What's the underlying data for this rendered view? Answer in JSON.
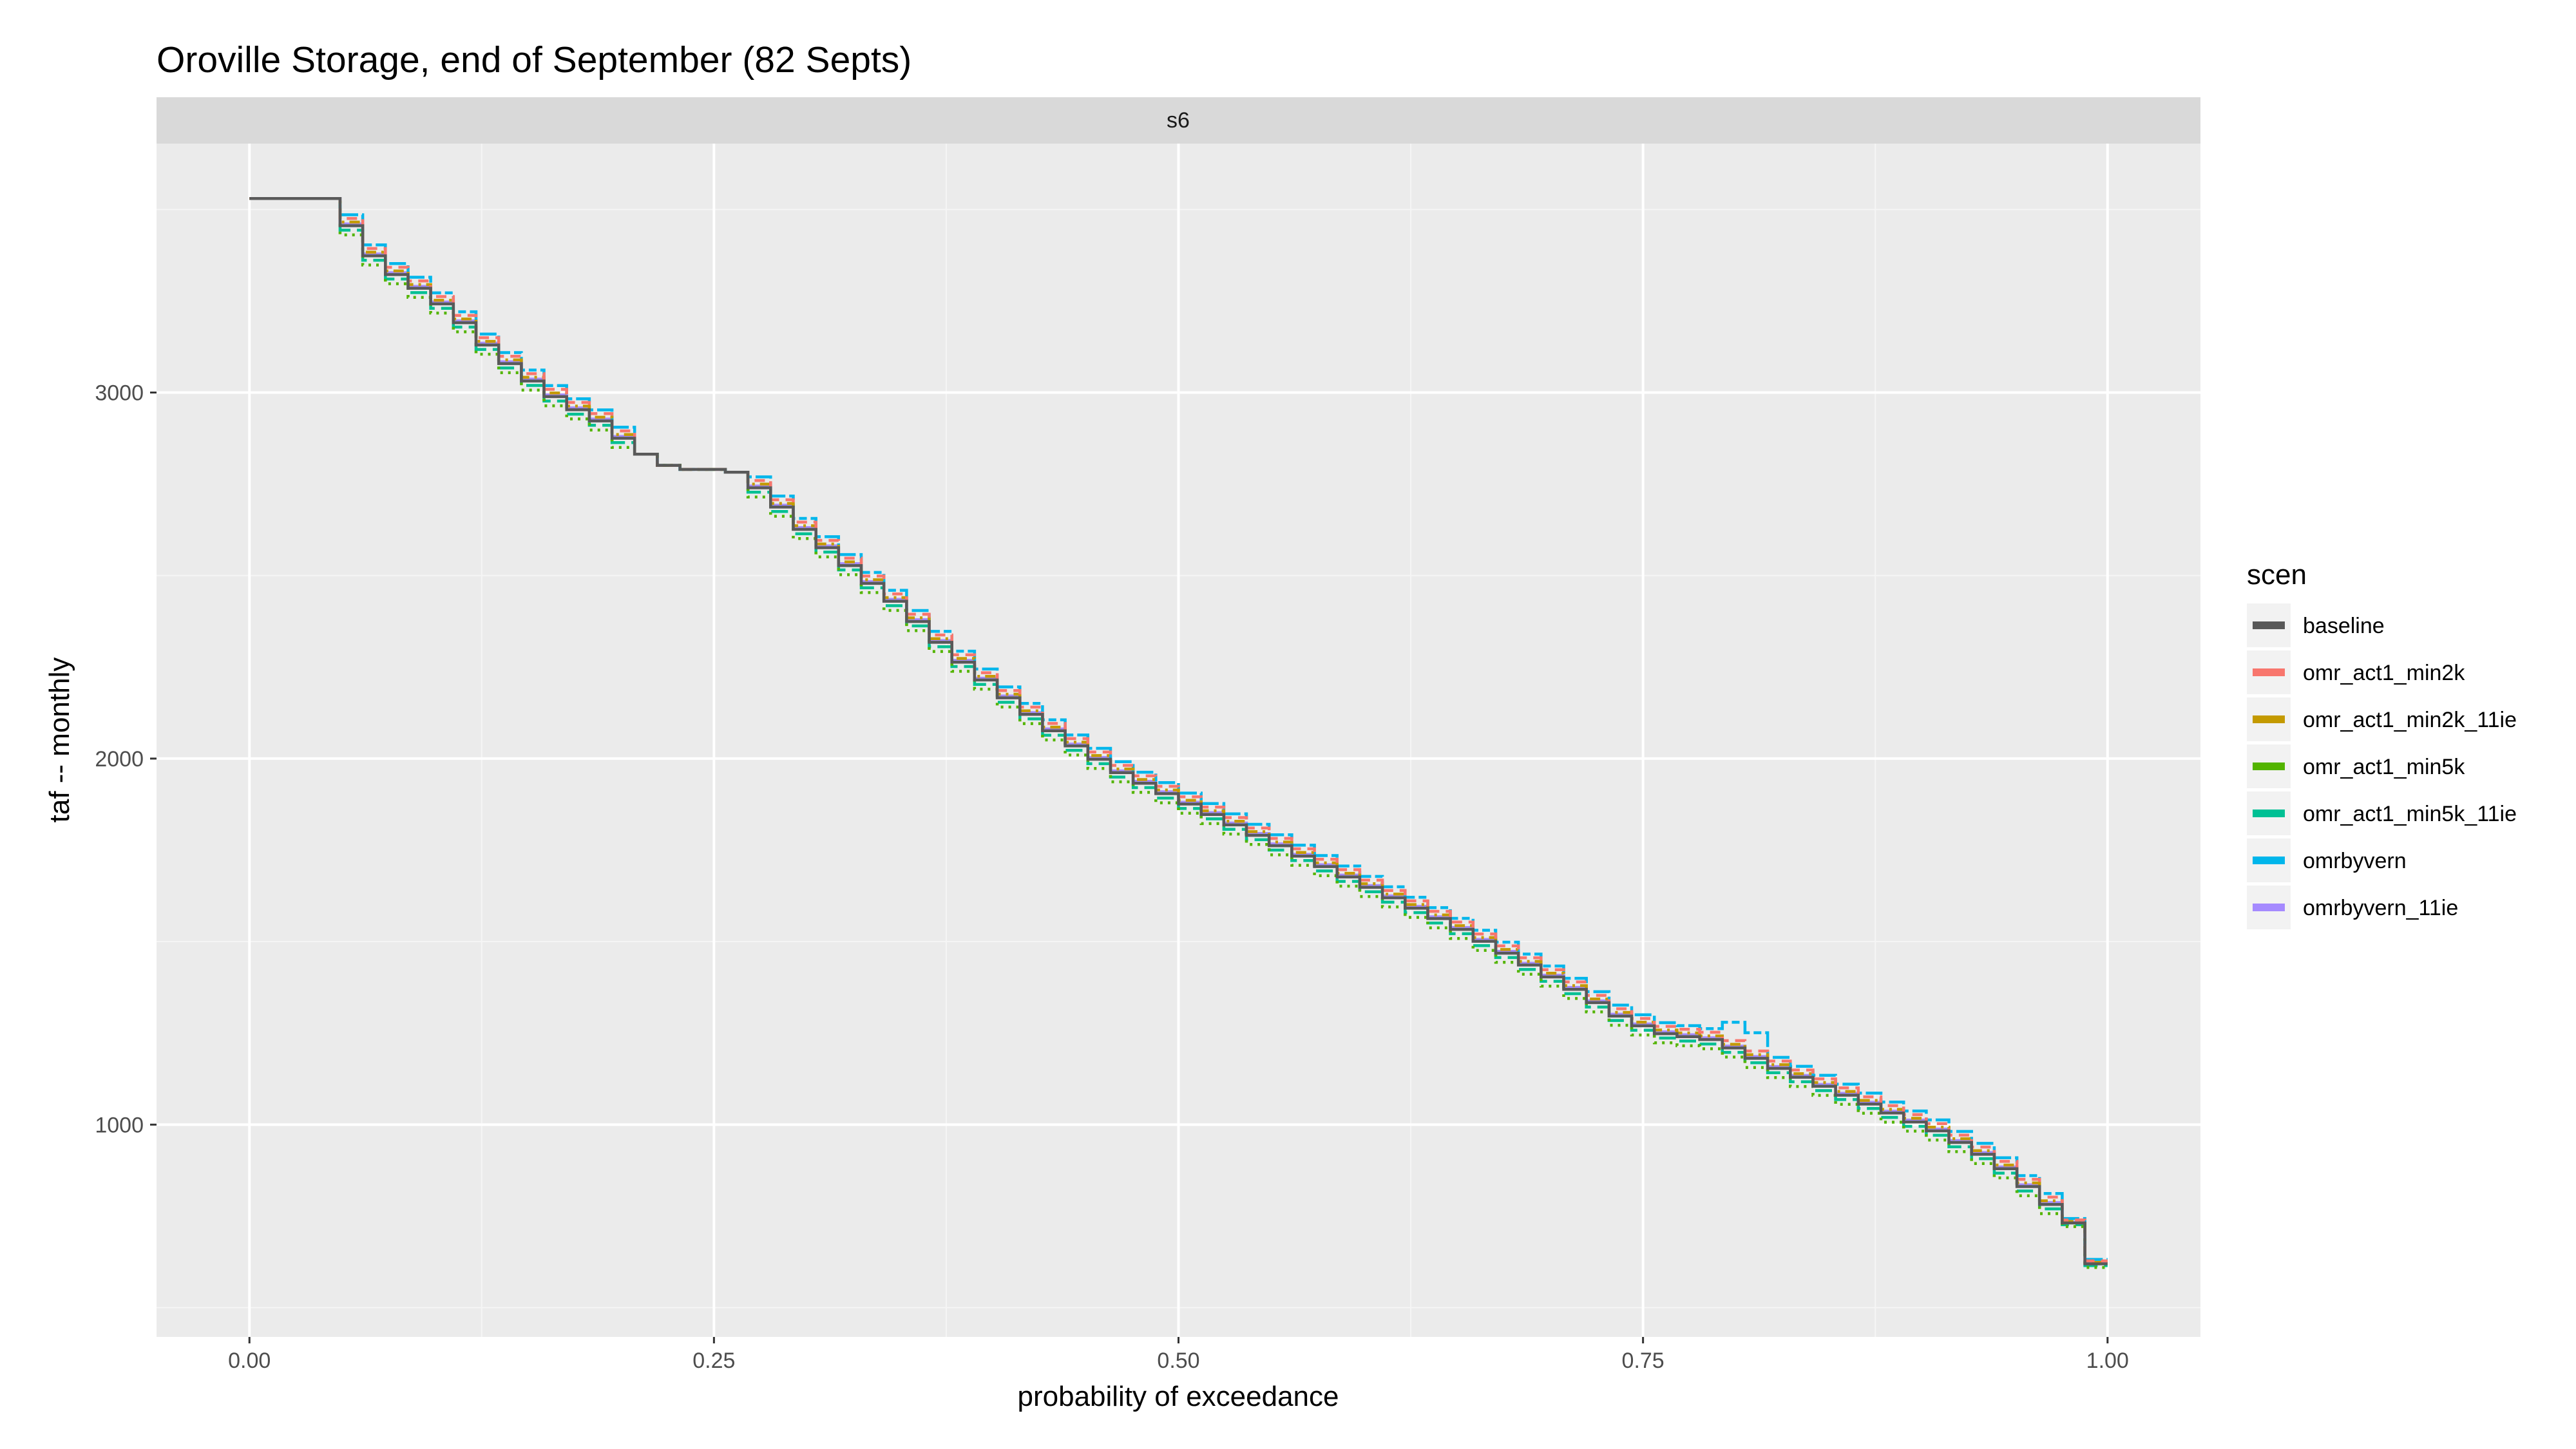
{
  "chart_data": {
    "type": "line",
    "title": "Oroville Storage, end of September (82 Septs)",
    "facet_label": "s6",
    "xlabel": "probability of exceedance",
    "ylabel": "taf -- monthly",
    "xlim": [
      -0.05,
      1.05
    ],
    "ylim": [
      420,
      3680
    ],
    "xticks": [
      0.0,
      0.25,
      0.5,
      0.75,
      1.0
    ],
    "xtick_labels": [
      "0.00",
      "0.25",
      "0.50",
      "0.75",
      "1.00"
    ],
    "yticks": [
      1000,
      2000,
      3000
    ],
    "ytick_labels": [
      "1000",
      "2000",
      "3000"
    ],
    "grid": true,
    "legend": {
      "title": "scen",
      "position": "right",
      "entries": [
        "baseline",
        "omr_act1_min2k",
        "omr_act1_min2k_11ie",
        "omr_act1_min5k",
        "omr_act1_min5k_11ie",
        "omrbyvern",
        "omrbyvern_11ie"
      ]
    },
    "series": [
      {
        "name": "baseline",
        "color": "#595959",
        "dash": "solid",
        "offset": 0,
        "swap_zone": false
      },
      {
        "name": "omr_act1_min2k",
        "color": "#F8766D",
        "dash": "dashed",
        "offset": 20,
        "swap_zone": false
      },
      {
        "name": "omr_act1_min2k_11ie",
        "color": "#C49A00",
        "dash": "dotdash",
        "offset": 10,
        "swap_zone": false
      },
      {
        "name": "omr_act1_min5k",
        "color": "#53B400",
        "dash": "dotted",
        "offset": -25,
        "swap_zone": false
      },
      {
        "name": "omr_act1_min5k_11ie",
        "color": "#00C094",
        "dash": "longdash",
        "offset": -12,
        "swap_zone": false
      },
      {
        "name": "omrbyvern",
        "color": "#00B6EB",
        "dash": "twodash",
        "offset": 30,
        "swap_zone": true
      },
      {
        "name": "omrbyvern_11ie",
        "color": "#A58AFF",
        "dash": "solid",
        "offset": 5,
        "swap_zone": false
      }
    ],
    "base_curve": {
      "x": [
        0.0,
        0.044,
        0.05,
        0.06,
        0.07,
        0.09,
        0.11,
        0.13,
        0.15,
        0.17,
        0.19,
        0.21,
        0.23,
        0.26,
        0.28,
        0.3,
        0.32,
        0.35,
        0.38,
        0.41,
        0.44,
        0.47,
        0.5,
        0.53,
        0.56,
        0.59,
        0.62,
        0.65,
        0.68,
        0.71,
        0.74,
        0.76,
        0.79,
        0.82,
        0.85,
        0.88,
        0.91,
        0.94,
        0.96,
        0.98,
        0.99,
        0.995,
        1.0
      ],
      "y": [
        3530,
        3530,
        3480,
        3430,
        3350,
        3290,
        3220,
        3120,
        3040,
        2970,
        2920,
        2840,
        2790,
        2790,
        2720,
        2620,
        2540,
        2420,
        2280,
        2160,
        2050,
        1960,
        1890,
        1820,
        1750,
        1680,
        1610,
        1540,
        1460,
        1380,
        1290,
        1250,
        1230,
        1160,
        1100,
        1040,
        980,
        900,
        820,
        740,
        690,
        600,
        540
      ]
    }
  }
}
